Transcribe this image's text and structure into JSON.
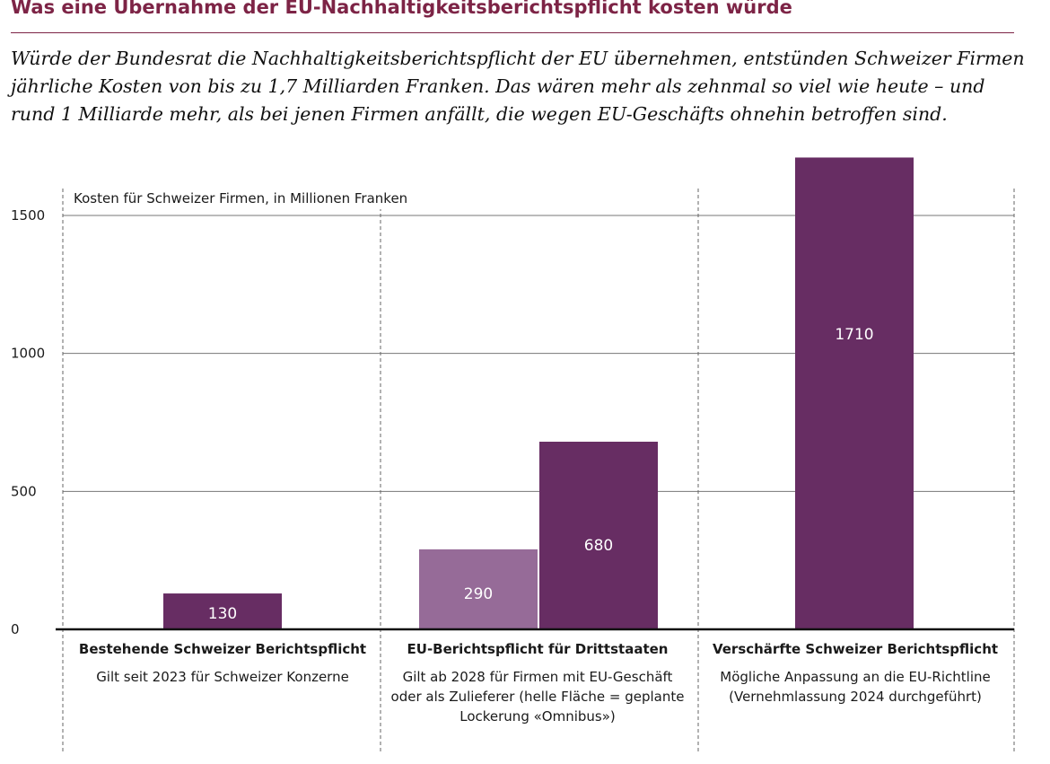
{
  "title": "Was eine Übernahme der EU-Nachhaltigkeitsberichtspflicht kosten würde",
  "subtitle": "Würde der Bundesrat die Nachhaltigkeitsberichtspflicht der EU übernehmen, entstünden Schweizer Firmen jährliche Kosten von bis zu 1,7 Milliarden Franken. Das wären mehr als zehnmal so viel wie heute – und rund 1 Milliarde mehr, als bei jenen Firmen anfällt, die wegen EU-Geschäfts ohnehin betroffen sind.",
  "colors": {
    "accent": "#7d2446",
    "bar": "#672d63",
    "bar_light": "#966b98"
  },
  "chart_data": {
    "type": "bar",
    "ylabel": "Kosten für Schweizer Firmen, in Millionen Franken",
    "ylim": [
      0,
      1710
    ],
    "yticks": [
      "0",
      "500",
      "1000",
      "1500"
    ],
    "grid": true,
    "groups": [
      {
        "name": "Bestehende Schweizer Berichtspflicht",
        "description": "Gilt seit 2023 für Schweizer Konzerne",
        "bars": [
          {
            "value": 130,
            "label": "130",
            "shade": "dark"
          }
        ]
      },
      {
        "name": "EU-Berichtspflicht für Drittstaaten",
        "description": "Gilt ab 2028 für Firmen mit EU-Ge­schäft oder als Zulieferer (helle Fläche = geplante Lockerung «Omnibus»)",
        "bars": [
          {
            "value": 290,
            "label": "290",
            "shade": "light"
          },
          {
            "value": 680,
            "label": "680",
            "shade": "dark"
          }
        ]
      },
      {
        "name": "Verschärfte Schweizer Berichtspflicht",
        "description": "Mögliche Anpassung an die EU-Richtline (Vernehmlassung 2024 durchgeführt)",
        "bars": [
          {
            "value": 1710,
            "label": "1710",
            "shade": "dark"
          }
        ]
      }
    ]
  }
}
